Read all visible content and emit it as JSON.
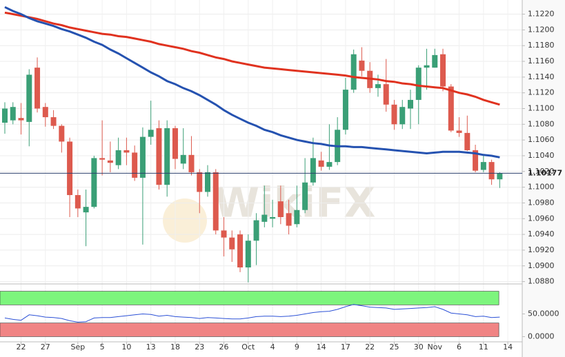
{
  "chart_data": [
    {
      "type": "candlestick",
      "watermark": "WikiFX",
      "categories": [
        null,
        null,
        "22",
        null,
        null,
        "27",
        null,
        null,
        null,
        "Sep",
        null,
        null,
        "5",
        null,
        null,
        "10",
        null,
        null,
        "13",
        null,
        null,
        "18",
        null,
        null,
        "23",
        null,
        null,
        "26",
        null,
        null,
        "Oct",
        null,
        null,
        "4",
        null,
        null,
        "9",
        null,
        null,
        "14",
        null,
        null,
        "17",
        null,
        null,
        "22",
        null,
        null,
        "25",
        null,
        null,
        "30",
        null,
        "Nov",
        null,
        null,
        "6",
        null,
        null,
        "11",
        null,
        null,
        "14"
      ],
      "open": [
        1.1082,
        1.1085,
        1.1088,
        1.1083,
        1.1152,
        1.1102,
        1.1089,
        1.1078,
        1.1058,
        1.099,
        1.0968,
        1.0975,
        1.1037,
        1.1034,
        1.1028,
        1.1047,
        1.1044,
        1.1012,
        1.1064,
        1.1075,
        1.1003,
        1.1075,
        1.103,
        1.1041,
        1.1019,
        1.0994,
        1.1019,
        1.0945,
        1.0936,
        1.094,
        1.0898,
        1.0932,
        1.0956,
        1.096,
        1.0982,
        1.0967,
        1.0953,
        1.0971,
        1.1006,
        1.1034,
        1.1026,
        1.1032,
        1.1073,
        1.1124,
        1.1161,
        1.1148,
        1.1126,
        1.1131,
        1.1105,
        1.108,
        1.11,
        1.1111,
        1.1152,
        1.1152,
        1.1169,
        1.1128,
        1.1072,
        1.1069,
        1.1047,
        1.1022,
        1.1032,
        1.101,
        null
      ],
      "high": [
        1.1108,
        1.1108,
        1.1107,
        1.115,
        1.1165,
        1.1107,
        1.1098,
        1.108,
        1.1063,
        1.0997,
        1.0997,
        1.104,
        1.1085,
        1.1058,
        1.1063,
        1.1063,
        1.1053,
        1.1076,
        1.111,
        1.1085,
        1.1085,
        1.1078,
        1.1075,
        1.1065,
        1.1023,
        1.1028,
        1.1023,
        1.0962,
        1.0945,
        1.0945,
        1.094,
        1.0967,
        1.1002,
        1.0984,
        1.1002,
        1.0984,
        1.1002,
        1.1037,
        1.1063,
        1.1045,
        1.108,
        1.1089,
        1.1139,
        1.1175,
        1.1178,
        1.1159,
        1.1143,
        1.1163,
        1.1111,
        1.1111,
        1.1124,
        1.1155,
        1.1176,
        1.1176,
        1.1176,
        1.1131,
        1.1089,
        1.1091,
        1.1054,
        1.104,
        1.1035,
        1.1019,
        null
      ],
      "low": [
        1.1068,
        1.108,
        1.1067,
        1.1052,
        1.1095,
        1.1077,
        1.1074,
        1.1044,
        1.0962,
        1.0962,
        1.0925,
        1.0973,
        1.1015,
        1.1019,
        1.1023,
        1.1028,
        1.1008,
        1.0927,
        1.1054,
        1.0997,
        1.0988,
        1.1023,
        1.1023,
        1.1015,
        1.0967,
        1.0988,
        1.094,
        1.0912,
        1.0905,
        1.0892,
        1.0879,
        1.0901,
        1.0949,
        1.0949,
        1.0953,
        1.094,
        1.0949,
        1.0967,
        1.1002,
        1.1021,
        1.1022,
        1.1028,
        1.1067,
        1.112,
        1.1141,
        1.112,
        1.1115,
        1.1096,
        1.1073,
        1.1074,
        1.1074,
        1.108,
        1.1124,
        1.1152,
        1.1122,
        1.107,
        1.1064,
        1.1046,
        1.1019,
        1.1019,
        1.1003,
        1.0999,
        null
      ],
      "close": [
        1.11,
        1.1102,
        1.1085,
        1.1143,
        1.11,
        1.1089,
        1.1078,
        1.1058,
        1.099,
        1.0973,
        1.0975,
        1.1037,
        1.1035,
        1.1031,
        1.1047,
        1.1044,
        1.1012,
        1.1064,
        1.1073,
        1.1003,
        1.1075,
        1.1036,
        1.1041,
        1.1019,
        1.0994,
        1.1019,
        1.0945,
        1.0936,
        1.0921,
        1.0898,
        1.0932,
        1.0958,
        1.0965,
        1.0962,
        1.0962,
        1.0951,
        1.0971,
        1.1006,
        1.1037,
        1.1026,
        1.1032,
        1.1073,
        1.1124,
        1.1169,
        1.1148,
        1.1126,
        1.1131,
        1.1105,
        1.108,
        1.1102,
        1.1111,
        1.1152,
        1.1155,
        1.1168,
        1.1128,
        1.1072,
        1.1069,
        1.1047,
        1.1021,
        1.1032,
        1.101,
        1.1018,
        null
      ],
      "up_color": "#3a9f76",
      "down_color": "#dd5a4e",
      "series": [
        {
          "color": "#e0321f",
          "values": [
            1.1222,
            1.122,
            1.1218,
            1.1216,
            1.1214,
            1.1211,
            1.1208,
            1.1206,
            1.1203,
            1.1201,
            1.1199,
            1.1197,
            1.1195,
            1.1194,
            1.1192,
            1.1191,
            1.1189,
            1.1187,
            1.1185,
            1.1182,
            1.118,
            1.1178,
            1.1176,
            1.1173,
            1.1171,
            1.1168,
            1.1165,
            1.1163,
            1.116,
            1.1158,
            1.1156,
            1.1154,
            1.1152,
            1.1151,
            1.115,
            1.1149,
            1.1148,
            1.1147,
            1.1146,
            1.1145,
            1.1144,
            1.1143,
            1.1142,
            1.114,
            1.1139,
            1.1138,
            1.1137,
            1.1135,
            1.1134,
            1.1132,
            1.1131,
            1.1129,
            1.1128,
            1.1127,
            1.1126,
            1.1123,
            1.112,
            1.1118,
            1.1115,
            1.1111,
            1.1108,
            1.1105,
            null
          ]
        },
        {
          "color": "#2552b0",
          "values": [
            1.1229,
            1.1224,
            1.122,
            1.1215,
            1.1211,
            1.1208,
            1.1205,
            1.1201,
            1.1198,
            1.1194,
            1.119,
            1.1185,
            1.1181,
            1.1175,
            1.117,
            1.1164,
            1.1158,
            1.1152,
            1.1146,
            1.1141,
            1.1135,
            1.1131,
            1.1126,
            1.1122,
            1.1117,
            1.1111,
            1.1105,
            1.1098,
            1.1092,
            1.1087,
            1.1082,
            1.1078,
            1.1073,
            1.107,
            1.1066,
            1.1063,
            1.106,
            1.1058,
            1.1056,
            1.1055,
            1.1053,
            1.1052,
            1.1052,
            1.1051,
            1.1051,
            1.105,
            1.1049,
            1.1048,
            1.1047,
            1.1046,
            1.1045,
            1.1044,
            1.1043,
            1.1044,
            1.1045,
            1.1045,
            1.1045,
            1.1044,
            1.1043,
            1.1041,
            1.104,
            1.1038,
            null
          ]
        }
      ],
      "last_price": 1.10177,
      "last_price_color": "#2b3f6c",
      "ylim": [
        1.0877,
        1.1238
      ],
      "yticks": [
        {
          "value": 1.088,
          "label": "1.0880"
        },
        {
          "value": 1.09,
          "label": "1.0900"
        },
        {
          "value": 1.092,
          "label": "1.0920"
        },
        {
          "value": 1.094,
          "label": "1.0940"
        },
        {
          "value": 1.096,
          "label": "1.0960"
        },
        {
          "value": 1.098,
          "label": "1.0980"
        },
        {
          "value": 1.1,
          "label": "1.1000"
        },
        {
          "value": 1.102,
          "label": "1.1020"
        },
        {
          "value": 1.104,
          "label": "1.1040"
        },
        {
          "value": 1.106,
          "label": "1.1060"
        },
        {
          "value": 1.108,
          "label": "1.1080"
        },
        {
          "value": 1.11,
          "label": "1.1100"
        },
        {
          "value": 1.112,
          "label": "1.1120"
        },
        {
          "value": 1.114,
          "label": "1.1140"
        },
        {
          "value": 1.116,
          "label": "1.1160"
        },
        {
          "value": 1.118,
          "label": "1.1180"
        },
        {
          "value": 1.12,
          "label": "1.1200"
        },
        {
          "value": 1.122,
          "label": "1.1220"
        }
      ],
      "grid": true
    },
    {
      "type": "line",
      "color": "#2b50d6",
      "values": [
        41,
        38,
        36,
        48,
        46,
        43,
        42,
        40,
        35,
        32,
        33,
        41,
        42,
        42,
        44,
        46,
        48,
        50,
        49,
        45,
        47,
        44,
        43,
        42,
        40,
        42,
        41,
        40,
        39,
        39,
        41,
        44,
        45,
        45,
        44,
        45,
        47,
        50,
        53,
        55,
        56,
        60,
        66,
        71,
        68,
        65,
        64,
        63,
        60,
        61,
        62,
        63,
        64,
        66,
        60,
        52,
        50,
        48,
        44,
        45,
        42,
        43,
        null
      ],
      "bands": [
        {
          "from": 70,
          "to": 100,
          "color": "#7df57d"
        },
        {
          "from": 0,
          "to": 30,
          "color": "#f08484"
        }
      ],
      "ylim": [
        -10,
        110
      ],
      "yticks": [
        {
          "value": 0,
          "label": "0.0000"
        },
        {
          "value": 50,
          "label": "50.0000"
        }
      ]
    }
  ]
}
